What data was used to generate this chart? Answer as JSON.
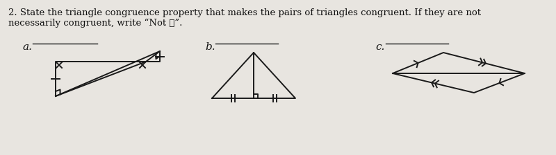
{
  "title_text": "2. State the triangle congruence property that makes the pairs of triangles congruent. If they are not\nnecessarily congruent, write “Not ≅”.",
  "label_a": "a.",
  "label_b": "b.",
  "label_c": "c.",
  "bg_color": "#e8e5e0",
  "line_color": "#1a1a1a",
  "title_fontsize": 9.5,
  "label_fontsize": 11,
  "lw": 1.4
}
